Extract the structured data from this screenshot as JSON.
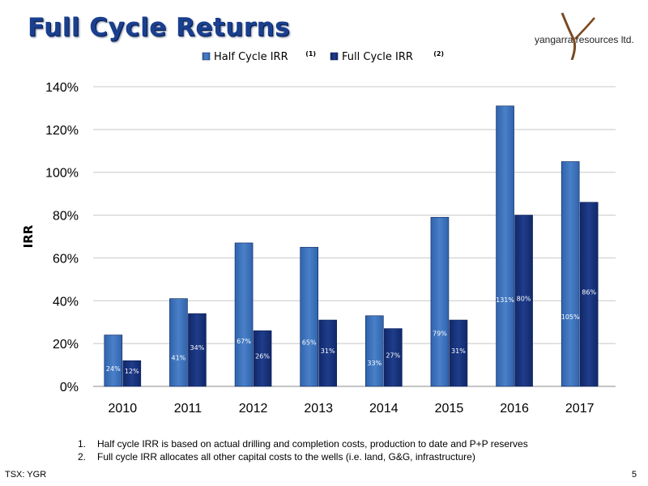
{
  "slide": {
    "title": "Full Cycle Returns",
    "logo_text": "yangarra resources ltd.",
    "footnotes": [
      {
        "num": "1.",
        "text": "Half cycle IRR is based on actual drilling and completion costs, production to date and P+P reserves"
      },
      {
        "num": "2.",
        "text": "Full cycle IRR allocates all other capital costs to the wells (i.e. land, G&G, infrastructure)"
      }
    ],
    "ticker": "TSX: YGR",
    "page_number": "5"
  },
  "chart_data": {
    "type": "bar",
    "categories": [
      "2010",
      "2011",
      "2012",
      "2013",
      "2014",
      "2015",
      "2016",
      "2017"
    ],
    "series": [
      {
        "name": "Half Cycle IRR",
        "superscript": "(1)",
        "values": [
          24,
          41,
          67,
          65,
          33,
          79,
          131,
          105
        ],
        "labels": [
          "24%",
          "41%",
          "67%",
          "65%",
          "33%",
          "79%",
          "131%",
          "105%"
        ],
        "color": "#2f63ad"
      },
      {
        "name": "Full Cycle IRR",
        "superscript": "(2)",
        "values": [
          12,
          34,
          26,
          31,
          27,
          31,
          80,
          86
        ],
        "labels": [
          "12%",
          "34%",
          "26%",
          "31%",
          "27%",
          "31%",
          "80%",
          "86%"
        ],
        "color": "#10276a"
      }
    ],
    "ylabel": "IRR",
    "ylim": [
      0,
      140
    ],
    "yticks": [
      0,
      20,
      40,
      60,
      80,
      100,
      120,
      140
    ],
    "ytick_labels": [
      "0%",
      "20%",
      "40%",
      "60%",
      "80%",
      "100%",
      "120%",
      "140%"
    ],
    "legend_position": "top",
    "grid": true
  }
}
